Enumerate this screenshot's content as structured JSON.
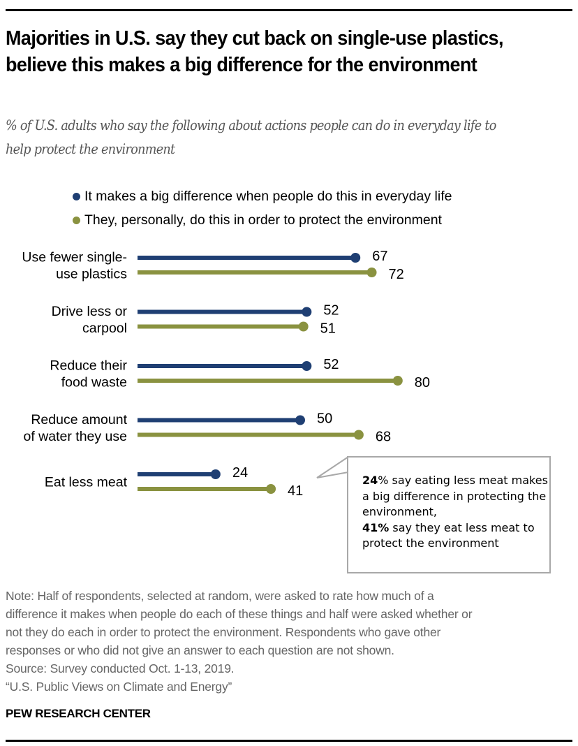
{
  "header": {
    "title": "Majorities in U.S. say they cut back on single-use plastics, believe this makes a big difference for the environment",
    "subtitle": "% of U.S. adults who say the following about actions people can do in everyday life to help protect the environment"
  },
  "colors": {
    "big_difference": "#1f3f73",
    "personally_do": "#8a9240",
    "callout_border": "#a8a8a8",
    "note_text": "#666666"
  },
  "chart_data": {
    "type": "bar",
    "orientation": "horizontal",
    "style": "lollipop",
    "title": "Majorities in U.S. say they cut back on single-use plastics, believe this makes a big difference for the environment",
    "subtitle": "% of U.S. adults who say the following about actions people can do in everyday life to help protect the environment",
    "xlabel": "",
    "ylabel": "",
    "xlim": [
      0,
      100
    ],
    "grid": false,
    "legend_position": "top",
    "categories": [
      [
        "Use fewer single-",
        "use plastics"
      ],
      [
        "Drive less or",
        "carpool"
      ],
      [
        "Reduce their",
        "food waste"
      ],
      [
        "Reduce amount",
        "of water they use"
      ],
      [
        "Eat less meat"
      ]
    ],
    "series": [
      {
        "name": "It makes a big difference when people do this in everyday life",
        "color": "#1f3f73",
        "values": [
          67,
          52,
          52,
          50,
          24
        ]
      },
      {
        "name": "They, personally, do this in order to protect the environment",
        "color": "#8a9240",
        "values": [
          72,
          51,
          80,
          68,
          41
        ]
      }
    ],
    "annotations": [
      {
        "target": "Eat less meat",
        "parts": [
          {
            "text": "24%",
            "bold": true
          },
          {
            "text": " say eating less meat makes a big difference in protecting the environment, ",
            "bold": false
          },
          {
            "text": "41%",
            "bold": true
          },
          {
            "text": " say they eat less meat to protect the environment",
            "bold": false
          }
        ]
      }
    ]
  },
  "callout": {
    "bold1": "24",
    "pct1": "%",
    "text1": " say eating less meat makes a big difference in protecting the environment,",
    "bold2": "41%",
    "text2": " say they eat less meat to protect the environment"
  },
  "footer": {
    "note_lines": [
      "Note: Half of respondents, selected at random, were asked to rate how much of a",
      "difference it makes when people do each of these things and half were asked whether or",
      "not they do each in order to protect the environment. Respondents who gave other",
      "responses or who did not give an answer to each question are not shown."
    ],
    "source": "Source: Survey conducted Oct. 1-13, 2019.",
    "report": "“U.S. Public Views on Climate and Energy”",
    "brand": "PEW RESEARCH CENTER"
  }
}
